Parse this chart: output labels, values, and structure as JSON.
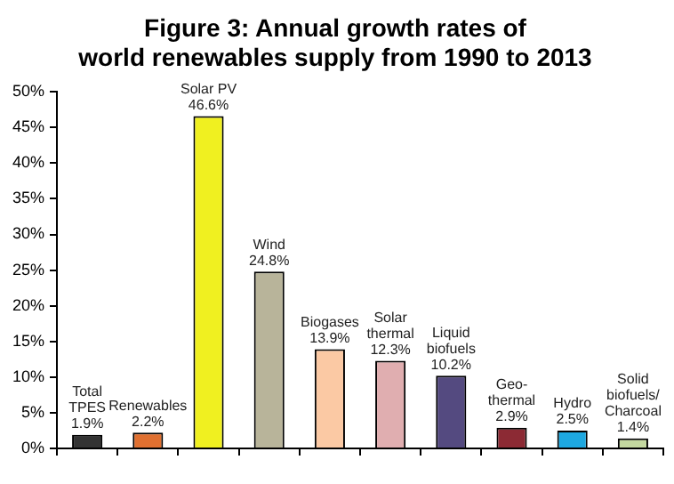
{
  "chart_data": {
    "type": "bar",
    "title": "Figure 3: Annual growth rates of\nworld renewables supply from 1990 to 2013",
    "categories": [
      "Total\nTPES",
      "Renewables",
      "Solar PV",
      "Wind",
      "Biogases",
      "Solar\nthermal",
      "Liquid\nbiofuels",
      "Geo-\nthermal",
      "Hydro",
      "Solid\nbiofuels/\nCharcoal"
    ],
    "values": [
      1.9,
      2.2,
      46.6,
      24.8,
      13.9,
      12.3,
      10.2,
      2.9,
      2.5,
      1.4
    ],
    "value_labels": [
      "1.9%",
      "2.2%",
      "46.6%",
      "24.8%",
      "13.9%",
      "12.3%",
      "10.2%",
      "2.9%",
      "2.5%",
      "1.4%"
    ],
    "colors": [
      "#333333",
      "#e07030",
      "#f0f020",
      "#b8b49a",
      "#fbc9a4",
      "#e0aeb0",
      "#544a80",
      "#8c2a34",
      "#1ea8e0",
      "#c4d8a0"
    ],
    "ylim": [
      0,
      50
    ],
    "yticks": [
      {
        "value": 0,
        "label": "0%"
      },
      {
        "value": 5,
        "label": "5%"
      },
      {
        "value": 10,
        "label": "10%"
      },
      {
        "value": 15,
        "label": "15%"
      },
      {
        "value": 20,
        "label": "20%"
      },
      {
        "value": 25,
        "label": "25%"
      },
      {
        "value": 30,
        "label": "30%"
      },
      {
        "value": 35,
        "label": "35%"
      },
      {
        "value": 40,
        "label": "40%"
      },
      {
        "value": 45,
        "label": "45%"
      },
      {
        "value": 50,
        "label": "50%"
      }
    ],
    "grid": false,
    "legend": false
  }
}
